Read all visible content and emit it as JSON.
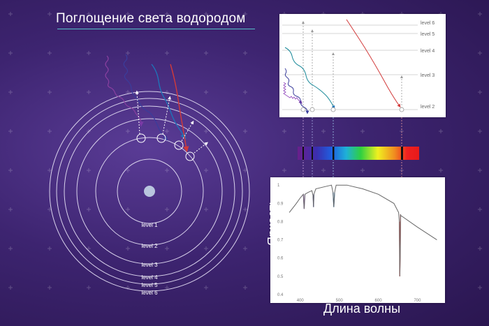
{
  "title": "Поглощение света водородом",
  "atom": {
    "levels": [
      "level 1",
      "level 2",
      "level 3",
      "level 4",
      "level 5",
      "level 6"
    ]
  },
  "energy_diagram": {
    "levels": [
      "level 6",
      "level 5",
      "level 4",
      "level 3",
      "level 2"
    ]
  },
  "colors": {
    "violet": "#8a3fa0",
    "indigo": "#3a3d9c",
    "cyan": "#1f8c9c",
    "red": "#d23a3a",
    "orbit": "#d9d2ec",
    "nucleus": "#b9c6de"
  },
  "chart_data": {
    "type": "line",
    "xlabel": "Длина волны",
    "ylabel": "Яркость",
    "x_ticks": [
      "400",
      "500",
      "600",
      "700"
    ],
    "y_ticks": [
      "0.4",
      "0.5",
      "0.6",
      "0.7",
      "0.8",
      "0.9",
      "1"
    ],
    "xlim": [
      370,
      760
    ],
    "ylim": [
      0.4,
      1.02
    ],
    "series": [
      {
        "x": [
          372,
          390,
          400,
          408,
          410,
          412,
          420,
          430,
          433,
          434,
          435,
          440,
          460,
          480,
          484,
          486,
          488,
          492,
          520,
          560,
          600,
          640,
          652,
          654,
          655,
          656,
          657,
          658,
          660,
          700,
          750
        ],
        "y": [
          0.85,
          0.9,
          0.93,
          0.95,
          0.87,
          0.95,
          0.96,
          0.97,
          0.94,
          0.88,
          0.95,
          0.98,
          0.99,
          1.0,
          0.96,
          0.88,
          0.96,
          1.0,
          1.0,
          0.98,
          0.95,
          0.9,
          0.85,
          0.8,
          0.5,
          0.62,
          0.84,
          0.83,
          0.83,
          0.77,
          0.7
        ]
      }
    ]
  }
}
